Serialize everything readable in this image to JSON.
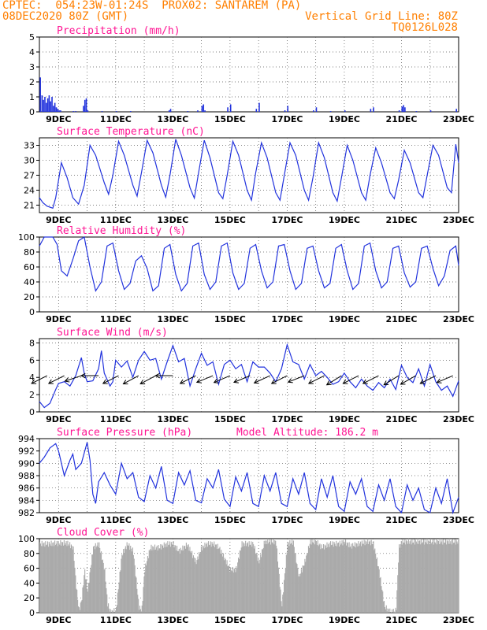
{
  "header": {
    "line1_left": "CPTEC:  054:23W-01:24S  PROX02: SANTAREM (PA)",
    "line2_left": "08DEC2020 80Z (GMT)",
    "line2_right": "Vertical Grid Line: 80Z",
    "line3_right": "TQ0126L028"
  },
  "x_labels": [
    "9DEC",
    "11DEC",
    "13DEC",
    "15DEC",
    "17DEC",
    "19DEC",
    "21DEC",
    "23DEC"
  ],
  "colors": {
    "header": "#ff7f00",
    "title": "#ff1493",
    "line": "#2233dd",
    "bar": "#2233dd",
    "cloud": "#aaaaaa"
  },
  "chart_data": [
    {
      "id": "precip",
      "type": "bar",
      "title": "Precipitation (mm/h)",
      "ylim": [
        0,
        5
      ],
      "yticks": [
        0,
        1,
        2,
        3,
        4,
        5
      ],
      "x_start": 8.33,
      "x_end": 23,
      "series": [
        {
          "x": [
            8.34,
            8.4,
            8.45,
            8.5,
            8.55,
            8.6,
            8.65,
            8.7,
            8.75,
            8.8,
            8.85,
            8.9,
            8.95,
            9.0,
            9.05,
            9.5,
            9.58,
            9.85,
            9.9,
            9.95,
            10.0,
            10.5,
            11.0,
            11.5,
            12.85,
            12.9,
            13.5,
            13.85,
            14.0,
            14.05,
            14.1,
            14.9,
            15.0,
            15.9,
            16.0,
            16.9,
            17.0,
            17.9,
            18.0,
            18.5,
            19.0,
            19.9,
            20.0,
            20.9,
            21.0,
            21.05,
            21.1,
            21.5,
            22.0,
            22.9
          ],
          "values": [
            2.3,
            1.1,
            0.8,
            1.0,
            0.6,
            0.9,
            1.1,
            0.7,
            1.0,
            0.4,
            0.6,
            0.3,
            0.2,
            0.1,
            0.1,
            0.05,
            0.05,
            0.4,
            0.8,
            0.9,
            0.1,
            0.05,
            0.05,
            0.05,
            0.1,
            0.2,
            0.05,
            0.1,
            0.4,
            0.5,
            0.1,
            0.3,
            0.5,
            0.2,
            0.6,
            0.1,
            0.4,
            0.1,
            0.3,
            0.05,
            0.1,
            0.2,
            0.3,
            0.1,
            0.35,
            0.45,
            0.3,
            0.05,
            0.1,
            0.2
          ]
        }
      ]
    },
    {
      "id": "temp",
      "type": "line",
      "title": "Surface Temperature (nC)",
      "ylim": [
        19.5,
        34.5
      ],
      "yticks": [
        21,
        24,
        27,
        30,
        33
      ],
      "x_start": 8.33,
      "x_end": 23,
      "series": [
        {
          "x": [
            8.33,
            8.45,
            8.6,
            8.8,
            8.9,
            9.1,
            9.3,
            9.5,
            9.7,
            9.9,
            10.1,
            10.3,
            10.6,
            10.75,
            10.9,
            11.1,
            11.3,
            11.6,
            11.75,
            11.9,
            12.1,
            12.3,
            12.6,
            12.75,
            12.9,
            13.1,
            13.3,
            13.6,
            13.75,
            13.9,
            14.1,
            14.3,
            14.6,
            14.75,
            14.9,
            15.1,
            15.3,
            15.6,
            15.75,
            15.9,
            16.1,
            16.3,
            16.6,
            16.75,
            16.9,
            17.1,
            17.3,
            17.6,
            17.75,
            17.9,
            18.1,
            18.3,
            18.6,
            18.75,
            18.9,
            19.1,
            19.3,
            19.6,
            19.75,
            19.9,
            20.1,
            20.3,
            20.6,
            20.75,
            20.9,
            21.1,
            21.3,
            21.6,
            21.75,
            21.9,
            22.1,
            22.3,
            22.6,
            22.75,
            22.9,
            23.0
          ],
          "values": [
            22.5,
            21.5,
            20.8,
            20.4,
            22.5,
            29.5,
            26.5,
            22.5,
            21.2,
            25.0,
            33.0,
            31.0,
            25.5,
            23.2,
            27.0,
            33.8,
            31.0,
            25.0,
            22.8,
            27.5,
            34.0,
            31.5,
            25.0,
            22.6,
            27.0,
            34.2,
            31.0,
            24.5,
            22.4,
            27.5,
            34.0,
            30.5,
            23.5,
            22.3,
            27.0,
            33.8,
            31.0,
            24.0,
            22.0,
            27.5,
            33.5,
            30.5,
            23.5,
            22.0,
            27.0,
            33.5,
            31.0,
            24.0,
            22.0,
            26.5,
            33.5,
            30.5,
            23.5,
            21.8,
            26.5,
            33.0,
            30.0,
            23.5,
            22.0,
            27.0,
            32.5,
            29.5,
            23.5,
            22.3,
            26.0,
            32.0,
            29.5,
            23.5,
            22.5,
            27.0,
            33.0,
            31.0,
            24.5,
            23.5,
            33.2,
            29.5
          ]
        }
      ]
    },
    {
      "id": "rh",
      "type": "line",
      "title": "Relative Humidity (%)",
      "ylim": [
        0,
        100
      ],
      "yticks": [
        0,
        20,
        40,
        60,
        80,
        100
      ],
      "x_start": 8.33,
      "x_end": 23,
      "series": [
        {
          "x": [
            8.33,
            8.5,
            8.8,
            8.95,
            9.1,
            9.3,
            9.5,
            9.7,
            9.9,
            10.1,
            10.3,
            10.5,
            10.7,
            10.9,
            11.1,
            11.3,
            11.5,
            11.7,
            11.9,
            12.1,
            12.3,
            12.5,
            12.7,
            12.9,
            13.1,
            13.3,
            13.5,
            13.7,
            13.9,
            14.1,
            14.3,
            14.5,
            14.7,
            14.9,
            15.1,
            15.3,
            15.5,
            15.7,
            15.9,
            16.1,
            16.3,
            16.5,
            16.7,
            16.9,
            17.1,
            17.3,
            17.5,
            17.7,
            17.9,
            18.1,
            18.3,
            18.5,
            18.7,
            18.9,
            19.1,
            19.3,
            19.5,
            19.7,
            19.9,
            20.1,
            20.3,
            20.5,
            20.7,
            20.9,
            21.1,
            21.3,
            21.5,
            21.7,
            21.9,
            22.1,
            22.3,
            22.5,
            22.7,
            22.9,
            23.0
          ],
          "values": [
            88,
            100,
            100,
            90,
            55,
            48,
            70,
            95,
            100,
            60,
            28,
            40,
            88,
            92,
            55,
            30,
            38,
            68,
            75,
            58,
            28,
            35,
            85,
            90,
            50,
            28,
            38,
            88,
            92,
            50,
            30,
            40,
            88,
            92,
            52,
            30,
            38,
            85,
            90,
            55,
            32,
            40,
            88,
            90,
            55,
            30,
            38,
            85,
            88,
            55,
            32,
            38,
            85,
            90,
            55,
            30,
            38,
            88,
            92,
            55,
            32,
            40,
            85,
            88,
            52,
            33,
            40,
            85,
            88,
            58,
            35,
            48,
            82,
            88,
            62
          ]
        }
      ]
    },
    {
      "id": "wind",
      "type": "line",
      "title": "Surface Wind (m/s)",
      "ylim": [
        0,
        8.5
      ],
      "yticks": [
        0,
        2,
        4,
        6,
        8
      ],
      "x_start": 8.33,
      "x_end": 23,
      "series": [
        {
          "x": [
            8.33,
            8.5,
            8.7,
            8.9,
            9.0,
            9.2,
            9.4,
            9.6,
            9.8,
            9.9,
            10.0,
            10.2,
            10.4,
            10.5,
            10.6,
            10.8,
            10.9,
            11.0,
            11.2,
            11.4,
            11.6,
            11.8,
            12.0,
            12.2,
            12.4,
            12.6,
            12.8,
            13.0,
            13.2,
            13.4,
            13.6,
            13.8,
            14.0,
            14.2,
            14.4,
            14.6,
            14.8,
            15.0,
            15.2,
            15.4,
            15.6,
            15.8,
            16.0,
            16.2,
            16.4,
            16.6,
            16.8,
            17.0,
            17.2,
            17.4,
            17.6,
            17.8,
            18.0,
            18.2,
            18.4,
            18.6,
            18.8,
            19.0,
            19.2,
            19.4,
            19.6,
            19.8,
            20.0,
            20.2,
            20.4,
            20.6,
            20.8,
            21.0,
            21.2,
            21.4,
            21.6,
            21.8,
            22.0,
            22.2,
            22.4,
            22.6,
            22.8,
            23.0
          ],
          "values": [
            1.2,
            0.5,
            1.0,
            2.6,
            3.3,
            3.5,
            3.0,
            4.2,
            6.3,
            4.5,
            3.5,
            3.6,
            5.0,
            7.1,
            4.5,
            3.0,
            3.5,
            6.0,
            5.2,
            5.9,
            4.0,
            6.0,
            7.0,
            6.0,
            6.2,
            3.8,
            5.8,
            7.7,
            5.8,
            6.2,
            3.0,
            5.0,
            6.8,
            5.4,
            5.8,
            3.2,
            5.5,
            6.0,
            5.0,
            5.5,
            3.5,
            5.8,
            5.2,
            5.2,
            4.5,
            3.5,
            5.0,
            7.8,
            5.8,
            5.5,
            3.8,
            5.5,
            4.2,
            4.7,
            4.0,
            3.2,
            3.5,
            4.5,
            3.5,
            2.8,
            3.8,
            3.0,
            2.5,
            3.4,
            2.8,
            3.8,
            2.6,
            5.4,
            4.0,
            3.4,
            5.0,
            3.0,
            5.5,
            3.5,
            2.5,
            3.0,
            1.8,
            3.6
          ]
        }
      ],
      "arrows": [
        {
          "x": 8.6,
          "u": -1.0,
          "v": -0.5
        },
        {
          "x": 9.2,
          "u": -1.0,
          "v": -0.5
        },
        {
          "x": 9.8,
          "u": -1.2,
          "v": -0.4
        },
        {
          "x": 10.4,
          "u": -1.0,
          "v": 0
        },
        {
          "x": 11.1,
          "u": -1.2,
          "v": -0.6
        },
        {
          "x": 11.8,
          "u": -1.3,
          "v": -0.7
        },
        {
          "x": 12.4,
          "u": -1.5,
          "v": -0.8
        },
        {
          "x": 13.0,
          "u": -1.2,
          "v": 0
        },
        {
          "x": 13.8,
          "u": -1.2,
          "v": -0.6
        },
        {
          "x": 14.4,
          "u": -1.2,
          "v": -0.5
        },
        {
          "x": 15.0,
          "u": -1.4,
          "v": -0.6
        },
        {
          "x": 15.7,
          "u": -1.2,
          "v": -0.5
        },
        {
          "x": 16.4,
          "u": -1.3,
          "v": -0.6
        },
        {
          "x": 17.0,
          "u": -1.2,
          "v": -0.6
        },
        {
          "x": 17.6,
          "u": -1.0,
          "v": -0.4
        },
        {
          "x": 18.3,
          "u": -1.0,
          "v": -0.5
        },
        {
          "x": 18.9,
          "u": -0.8,
          "v": -0.5
        },
        {
          "x": 19.5,
          "u": -1.0,
          "v": -0.5
        },
        {
          "x": 20.2,
          "u": -1.0,
          "v": -0.5
        },
        {
          "x": 20.9,
          "u": -0.8,
          "v": -0.5
        },
        {
          "x": 21.5,
          "u": -0.7,
          "v": -0.4
        },
        {
          "x": 22.2,
          "u": -0.8,
          "v": -0.4
        },
        {
          "x": 22.8,
          "u": -0.7,
          "v": -0.3
        }
      ]
    },
    {
      "id": "pressure",
      "type": "line",
      "title": "Surface Pressure (hPa)",
      "subtitle": "Model Altitude: 186.2 m",
      "ylim": [
        982,
        994
      ],
      "yticks": [
        982,
        984,
        986,
        988,
        990,
        992,
        994
      ],
      "x_start": 8.33,
      "x_end": 23,
      "series": [
        {
          "x": [
            8.33,
            8.5,
            8.7,
            8.9,
            9.0,
            9.2,
            9.4,
            9.5,
            9.6,
            9.8,
            10.0,
            10.1,
            10.2,
            10.3,
            10.4,
            10.6,
            10.8,
            11.0,
            11.2,
            11.4,
            11.6,
            11.8,
            12.0,
            12.2,
            12.4,
            12.6,
            12.8,
            13.0,
            13.2,
            13.4,
            13.6,
            13.8,
            14.0,
            14.2,
            14.4,
            14.6,
            14.8,
            15.0,
            15.2,
            15.4,
            15.6,
            15.8,
            16.0,
            16.2,
            16.4,
            16.6,
            16.8,
            17.0,
            17.2,
            17.4,
            17.6,
            17.8,
            18.0,
            18.2,
            18.4,
            18.6,
            18.8,
            19.0,
            19.2,
            19.4,
            19.6,
            19.8,
            20.0,
            20.2,
            20.4,
            20.6,
            20.8,
            21.0,
            21.2,
            21.4,
            21.6,
            21.8,
            22.0,
            22.2,
            22.4,
            22.6,
            22.8,
            23.0
          ],
          "values": [
            990.0,
            991.0,
            992.5,
            993.2,
            992.0,
            988.0,
            990.5,
            991.5,
            989.0,
            990.0,
            993.4,
            990.5,
            985.0,
            983.5,
            987.0,
            988.5,
            986.5,
            985.0,
            990.0,
            987.5,
            988.5,
            984.5,
            983.8,
            988.0,
            986.0,
            989.5,
            984.0,
            983.5,
            988.5,
            986.5,
            988.8,
            984.0,
            983.6,
            987.5,
            986.0,
            989.0,
            984.2,
            983.0,
            987.8,
            985.5,
            988.5,
            983.5,
            983.0,
            988.0,
            985.5,
            988.5,
            983.5,
            983.0,
            987.5,
            985.0,
            988.5,
            983.5,
            982.5,
            987.5,
            984.5,
            988.0,
            983.0,
            982.2,
            987.0,
            985.0,
            987.5,
            983.0,
            982.2,
            986.5,
            984.0,
            987.5,
            983.0,
            982.0,
            986.5,
            984.0,
            986.0,
            982.5,
            982.0,
            986.0,
            983.5,
            987.5,
            982.0,
            984.5
          ]
        }
      ]
    },
    {
      "id": "cloud",
      "type": "area",
      "title": "Cloud Cover (%)",
      "ylim": [
        0,
        100
      ],
      "yticks": [
        0,
        20,
        40,
        60,
        80,
        100
      ],
      "x_start": 8.33,
      "x_end": 23,
      "series": [
        {
          "x": [
            8.33,
            8.6,
            9.0,
            9.3,
            9.5,
            9.6,
            9.7,
            9.8,
            9.9,
            10.0,
            10.2,
            10.4,
            10.6,
            10.7,
            10.8,
            11.0,
            11.2,
            11.4,
            11.6,
            11.8,
            11.9,
            12.0,
            12.2,
            12.5,
            12.8,
            13.0,
            13.2,
            13.5,
            13.8,
            14.0,
            14.2,
            14.4,
            14.6,
            14.8,
            15.0,
            15.2,
            15.4,
            15.6,
            15.8,
            16.0,
            16.2,
            16.4,
            16.6,
            16.8,
            17.0,
            17.2,
            17.4,
            17.6,
            17.8,
            18.0,
            18.2,
            18.5,
            18.8,
            19.0,
            19.2,
            19.5,
            19.8,
            20.0,
            20.2,
            20.4,
            20.6,
            20.8,
            20.9,
            21.0,
            21.2,
            21.5,
            21.8,
            22.0,
            22.2,
            22.5,
            22.8,
            23.0
          ],
          "values": [
            95,
            95,
            96,
            96,
            90,
            40,
            5,
            20,
            60,
            30,
            90,
            95,
            60,
            15,
            3,
            5,
            80,
            95,
            85,
            10,
            5,
            60,
            90,
            90,
            95,
            95,
            85,
            94,
            70,
            90,
            95,
            95,
            90,
            75,
            60,
            60,
            95,
            95,
            95,
            70,
            98,
            98,
            98,
            10,
            95,
            98,
            50,
            70,
            98,
            98,
            90,
            95,
            95,
            98,
            92,
            95,
            98,
            96,
            60,
            10,
            3,
            5,
            90,
            98,
            98,
            98,
            98,
            98,
            98,
            98,
            98,
            98
          ]
        }
      ]
    }
  ]
}
